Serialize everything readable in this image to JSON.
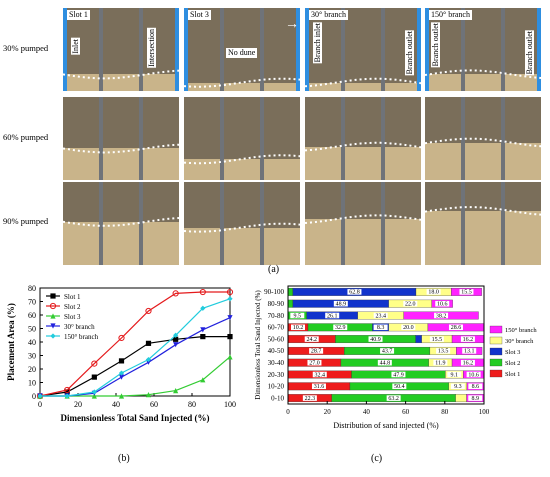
{
  "caption_a": "(a)",
  "caption_b": "(b)",
  "caption_c": "(c)",
  "photo_grid": {
    "row_labels": [
      "30% pumped",
      "60% pumped",
      "90% pumped"
    ],
    "column_titles": [
      "Slot 1",
      "Slot 3",
      "30° branch",
      "150° branch"
    ],
    "annotations": {
      "inlet": "Inlet",
      "intersection": "Intersection",
      "no_dune": "No dune",
      "branch_inlet": "Branch inlet",
      "branch_outlet_30": "Branch outlet",
      "branch_outlet_150a": "Branch outlet",
      "branch_outlet_150b": "Branch outlet"
    },
    "colors": {
      "sand": "#c9b48a",
      "fluid": "#7a6e5a",
      "frame": "#6f7379",
      "edge": "#2e8ee0"
    }
  },
  "chart_data": [
    {
      "type": "line",
      "xlabel": "Dimensionless Total Sand Injected (%)",
      "ylabel": "Placement Area (%)",
      "xlim": [
        0,
        100
      ],
      "ylim": [
        0,
        80
      ],
      "x_ticks": [
        0,
        20,
        40,
        60,
        80,
        100
      ],
      "y_ticks": [
        0,
        10,
        20,
        30,
        40,
        50,
        60,
        70,
        80
      ],
      "legend_position": "top-left",
      "x": [
        0,
        14.3,
        28.6,
        42.9,
        57.1,
        71.4,
        85.7,
        100
      ],
      "series": [
        {
          "name": "Slot 1",
          "color": "#000000",
          "marker": "square",
          "values": [
            0,
            3,
            14,
            26,
            39,
            42,
            44,
            44
          ]
        },
        {
          "name": "Slot 2",
          "color": "#e41a1c",
          "marker": "circle",
          "values": [
            0,
            4.5,
            24,
            43,
            63,
            76,
            77,
            77
          ]
        },
        {
          "name": "Slot 3",
          "color": "#33cc33",
          "marker": "triangle-up",
          "values": [
            0,
            0,
            0,
            0,
            1,
            4,
            12,
            29
          ]
        },
        {
          "name": "30° branch",
          "color": "#2222dd",
          "marker": "triangle-down",
          "values": [
            0,
            0,
            2,
            14,
            25,
            38,
            49,
            58
          ]
        },
        {
          "name": "150° branch",
          "color": "#22ccdd",
          "marker": "diamond",
          "values": [
            0,
            0,
            3,
            17,
            27,
            45,
            65,
            72
          ]
        }
      ]
    },
    {
      "type": "bar",
      "orientation": "horizontal-stacked",
      "xlabel": "Distribution of sand injected (%)",
      "ylabel": "Dimensionless Total Sand Injected (%)",
      "xlim": [
        0,
        100
      ],
      "x_ticks": [
        0,
        20,
        40,
        60,
        80,
        100
      ],
      "legend_position": "right",
      "categories": [
        "0-10",
        "10-20",
        "20-30",
        "30-40",
        "40-50",
        "50-60",
        "60-70",
        "70-80",
        "80-90",
        "90-100"
      ],
      "series": [
        {
          "name": "Slot 1",
          "color": "#ee1c1c",
          "values": [
            22.3,
            31.6,
            32.4,
            27.0,
            28.7,
            24.2,
            10.2,
            0,
            0,
            0
          ]
        },
        {
          "name": "Slot 2",
          "color": "#22cc22",
          "values": [
            63.2,
            50.4,
            47.9,
            44.8,
            43.7,
            40.9,
            32.9,
            9.5,
            2.5,
            2.5
          ]
        },
        {
          "name": "Slot 3",
          "color": "#1133cc",
          "values": [
            0,
            0,
            0,
            0,
            0,
            3.1,
            8.3,
            26.1,
            48.9,
            62.8
          ]
        },
        {
          "name": "30° branch",
          "color": "#ffff88",
          "values": [
            5.6,
            9.3,
            9.1,
            11.9,
            13.5,
            15.5,
            20.0,
            23.4,
            22.0,
            18.0
          ]
        },
        {
          "name": "150° branch",
          "color": "#ff22ff",
          "values": [
            8.9,
            8.6,
            10.6,
            16.2,
            13.1,
            16.2,
            28.6,
            38.2,
            10.6,
            15.5
          ]
        }
      ],
      "segment_labels": [
        [
          "22.3",
          "63.2",
          "",
          "",
          "8.9"
        ],
        [
          "31.6",
          "50.4",
          "",
          "9.3",
          "8.6"
        ],
        [
          "32.4",
          "47.9",
          "",
          "9.1",
          "10.6"
        ],
        [
          "27.0",
          "44.8",
          "",
          "11.9",
          "16.2"
        ],
        [
          "28.7",
          "43.7",
          "",
          "13.5",
          "13.1"
        ],
        [
          "24.2",
          "40.9",
          "",
          "15.5",
          "16.2"
        ],
        [
          "10.2",
          "32.9",
          "8.3",
          "20.0",
          "28.6"
        ],
        [
          "",
          "9.5",
          "26.1",
          "23.4",
          "38.2"
        ],
        [
          "",
          "",
          "48.9",
          "22.0",
          "10.6"
        ],
        [
          "",
          "",
          "62.8",
          "18.0",
          "15.5"
        ]
      ],
      "legend_order": [
        "150° branch",
        "30° branch",
        "Slot 3",
        "Slot 2",
        "Slot 1"
      ]
    }
  ]
}
